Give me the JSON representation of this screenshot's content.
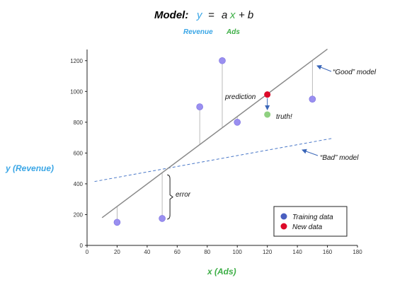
{
  "header": {
    "model_label": "Model:",
    "eq_y": "y",
    "eq_eq": "=",
    "eq_a": "a",
    "eq_x": "x",
    "eq_plus_b": "+ b",
    "sub_revenue": "Revenue",
    "sub_ads": "Ads"
  },
  "colors": {
    "blue": "#3aa6e6",
    "green": "#3cae45",
    "point_train": "#9a8ff0",
    "point_new": "#dd0a2a",
    "point_truth": "#8fd080",
    "good_line": "#8a8a8a",
    "bad_line": "#4a78c8",
    "arrow": "#3a66b8"
  },
  "chart_data": {
    "type": "scatter",
    "xlabel": "x (Ads)",
    "ylabel": "y (Revenue)",
    "xlim": [
      0,
      180
    ],
    "ylim": [
      0,
      1300
    ],
    "xticks": [
      0,
      20,
      40,
      60,
      80,
      100,
      120,
      140,
      160,
      180
    ],
    "yticks": [
      0,
      200,
      400,
      600,
      800,
      1000,
      1200
    ],
    "training_points": [
      {
        "x": 20,
        "y": 150
      },
      {
        "x": 50,
        "y": 175
      },
      {
        "x": 75,
        "y": 900
      },
      {
        "x": 90,
        "y": 1200
      },
      {
        "x": 100,
        "y": 800
      },
      {
        "x": 150,
        "y": 950
      }
    ],
    "new_point": {
      "x": 120,
      "y": 980
    },
    "truth_point": {
      "x": 120,
      "y": 850
    },
    "good_model": {
      "label": "“Good” model",
      "x0": 10,
      "y0": 180,
      "x1": 160,
      "y1": 1275
    },
    "bad_model": {
      "label": "“Bad” model",
      "x0": 5,
      "y0": 415,
      "x1": 163,
      "y1": 695
    },
    "annotations": {
      "prediction": "prediction",
      "truth": "truth!",
      "error": "error"
    },
    "legend": {
      "position": "bottom-right",
      "entries": [
        {
          "label": "Training data",
          "color": "#4a5fc0"
        },
        {
          "label": "New data",
          "color": "#dd0a2a"
        }
      ]
    },
    "grid": false
  }
}
